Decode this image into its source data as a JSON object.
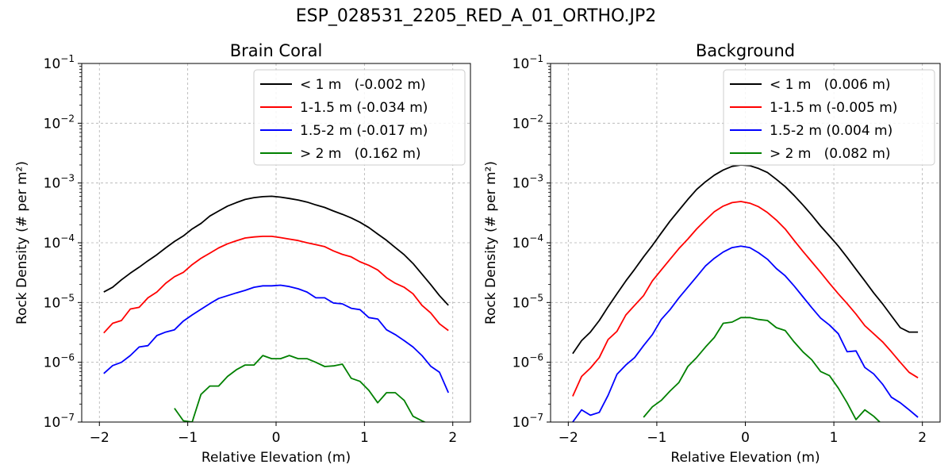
{
  "figure": {
    "suptitle": "ESP_028531_2205_RED_A_01_ORTHO.JP2"
  },
  "chart_data": [
    {
      "type": "line",
      "title": "Brain Coral",
      "xlabel": "Relative Elevation (m)",
      "ylabel": "Rock Density (# per m²)",
      "xlim": [
        -2.2,
        2.2
      ],
      "ylim": [
        1e-07,
        0.1
      ],
      "yscale": "log",
      "grid": true,
      "legend_position": "upper right",
      "xticks": [
        -2,
        -1,
        0,
        1,
        2
      ],
      "xtick_labels": [
        "−2",
        "−1",
        "0",
        "1",
        "2"
      ],
      "yticks": [
        1e-07,
        1e-06,
        1e-05,
        0.0001,
        0.001,
        0.01,
        0.1
      ],
      "ytick_exponents": [
        "−7",
        "−6",
        "−5",
        "−4",
        "−3",
        "−2",
        "−1"
      ],
      "x": [
        -1.95,
        -1.85,
        -1.75,
        -1.65,
        -1.55,
        -1.45,
        -1.35,
        -1.25,
        -1.15,
        -1.05,
        -0.95,
        -0.85,
        -0.75,
        -0.65,
        -0.55,
        -0.45,
        -0.35,
        -0.25,
        -0.15,
        -0.05,
        0.05,
        0.15,
        0.25,
        0.35,
        0.45,
        0.55,
        0.65,
        0.75,
        0.85,
        0.95,
        1.05,
        1.15,
        1.25,
        1.35,
        1.45,
        1.55,
        1.65,
        1.75,
        1.85,
        1.95
      ],
      "series": [
        {
          "name": "< 1 m   (-0.002 m)",
          "color": "#000000",
          "values": [
            1.5e-05,
            1.8e-05,
            2.4e-05,
            3.1e-05,
            3.9e-05,
            5e-05,
            6.3e-05,
            8.2e-05,
            0.000105,
            0.00013,
            0.00017,
            0.00021,
            0.00028,
            0.00034,
            0.00041,
            0.00047,
            0.00053,
            0.00057,
            0.00059,
            0.0006,
            0.00058,
            0.00055,
            0.00052,
            0.00048,
            0.00043,
            0.00039,
            0.00034,
            0.0003,
            0.00026,
            0.00022,
            0.00018,
            0.00014,
            0.00011,
            8.3e-05,
            6.3e-05,
            4.5e-05,
            3e-05,
            2e-05,
            1.3e-05,
            9e-06
          ]
        },
        {
          "name": "1-1.5 m (-0.034 m)",
          "color": "#ff0000",
          "values": [
            3.1e-06,
            4.5e-06,
            5e-06,
            7.8e-06,
            8.3e-06,
            1.2e-05,
            1.5e-05,
            2.1e-05,
            2.7e-05,
            3.2e-05,
            4.3e-05,
            5.5e-05,
            6.7e-05,
            8.2e-05,
            9.6e-05,
            0.000108,
            0.00012,
            0.000125,
            0.000128,
            0.000128,
            0.000122,
            0.000115,
            0.000109,
            0.0001,
            9.3e-05,
            8.6e-05,
            7.3e-05,
            6.4e-05,
            5.8e-05,
            4.8e-05,
            4.2e-05,
            3.5e-05,
            2.6e-05,
            2.1e-05,
            1.8e-05,
            1.4e-05,
            9e-06,
            6.7e-06,
            4.4e-06,
            3.4e-06
          ]
        },
        {
          "name": "1.5-2 m (-0.017 m)",
          "color": "#0000ff",
          "values": [
            6.5e-07,
            8.8e-07,
            1e-06,
            1.3e-06,
            1.8e-06,
            1.9e-06,
            2.8e-06,
            3.2e-06,
            3.5e-06,
            4.9e-06,
            6.2e-06,
            7.7e-06,
            9.6e-06,
            1.17e-05,
            1.3e-05,
            1.45e-05,
            1.6e-05,
            1.8e-05,
            1.9e-05,
            1.9e-05,
            1.95e-05,
            1.85e-05,
            1.7e-05,
            1.5e-05,
            1.2e-05,
            1.2e-05,
            9.8e-06,
            9.5e-06,
            8e-06,
            7.6e-06,
            5.6e-06,
            5.3e-06,
            3.5e-06,
            2.9e-06,
            2.3e-06,
            1.8e-06,
            1.3e-06,
            8.6e-07,
            6.8e-07,
            3.1e-07
          ]
        },
        {
          "name": "> 2 m   (0.162 m)",
          "color": "#008000",
          "values": [
            null,
            null,
            null,
            null,
            null,
            null,
            null,
            null,
            1.7e-07,
            1.05e-07,
            1e-07,
            2.9e-07,
            4e-07,
            4e-07,
            5.8e-07,
            7.5e-07,
            9e-07,
            9e-07,
            1.3e-06,
            1.15e-06,
            1.15e-06,
            1.3e-06,
            1.15e-06,
            1.15e-06,
            1e-06,
            8.5e-07,
            8.7e-07,
            9.3e-07,
            5.4e-07,
            4.8e-07,
            3.4e-07,
            2.1e-07,
            3.1e-07,
            3.1e-07,
            2.3e-07,
            1.25e-07,
            1.05e-07,
            9e-08,
            null,
            null
          ]
        }
      ]
    },
    {
      "type": "line",
      "title": "Background",
      "xlabel": "Relative Elevation (m)",
      "ylabel": "Rock Density (# per m²)",
      "xlim": [
        -2.2,
        2.2
      ],
      "ylim": [
        1e-07,
        0.1
      ],
      "yscale": "log",
      "grid": true,
      "legend_position": "upper right",
      "xticks": [
        -2,
        -1,
        0,
        1,
        2
      ],
      "xtick_labels": [
        "−2",
        "−1",
        "0",
        "1",
        "2"
      ],
      "yticks": [
        1e-07,
        1e-06,
        1e-05,
        0.0001,
        0.001,
        0.01,
        0.1
      ],
      "ytick_exponents": [
        "−7",
        "−6",
        "−5",
        "−4",
        "−3",
        "−2",
        "−1"
      ],
      "x": [
        -1.95,
        -1.85,
        -1.75,
        -1.65,
        -1.55,
        -1.45,
        -1.35,
        -1.25,
        -1.15,
        -1.05,
        -0.95,
        -0.85,
        -0.75,
        -0.65,
        -0.55,
        -0.45,
        -0.35,
        -0.25,
        -0.15,
        -0.05,
        0.05,
        0.15,
        0.25,
        0.35,
        0.45,
        0.55,
        0.65,
        0.75,
        0.85,
        0.95,
        1.05,
        1.15,
        1.25,
        1.35,
        1.45,
        1.55,
        1.65,
        1.75,
        1.85,
        1.95
      ],
      "series": [
        {
          "name": "< 1 m   (0.006 m)",
          "color": "#000000",
          "values": [
            1.4e-06,
            2.3e-06,
            3.2e-06,
            5e-06,
            8.5e-06,
            1.4e-05,
            2.3e-05,
            3.6e-05,
            5.8e-05,
            9e-05,
            0.000145,
            0.00023,
            0.00035,
            0.00053,
            0.00078,
            0.00105,
            0.00135,
            0.00165,
            0.0019,
            0.002,
            0.00195,
            0.00175,
            0.0015,
            0.00115,
            0.00087,
            0.00062,
            0.00043,
            0.00029,
            0.00019,
            0.00013,
            8.8e-05,
            5.7e-05,
            3.6e-05,
            2.3e-05,
            1.45e-05,
            9.5e-06,
            6e-06,
            3.8e-06,
            3.2e-06,
            3.2e-06
          ]
        },
        {
          "name": "1-1.5 m (-0.005 m)",
          "color": "#ff0000",
          "values": [
            2.7e-07,
            5.8e-07,
            8e-07,
            1.2e-06,
            2.4e-06,
            3.3e-06,
            6.2e-06,
            9e-06,
            1.3e-05,
            2.3e-05,
            3.5e-05,
            5.3e-05,
            8e-05,
            0.000115,
            0.00017,
            0.00024,
            0.00033,
            0.00041,
            0.00047,
            0.00049,
            0.00046,
            0.0004,
            0.00032,
            0.00024,
            0.00017,
            0.00011,
            7.2e-05,
            4.8e-05,
            3.2e-05,
            2.1e-05,
            1.4e-05,
            9.6e-06,
            6.4e-06,
            4.1e-06,
            3e-06,
            2.2e-06,
            1.5e-06,
            1e-06,
            6.8e-07,
            5.5e-07
          ]
        },
        {
          "name": "1.5-2 m (0.004 m)",
          "color": "#0000ff",
          "values": [
            1e-07,
            1.6e-07,
            1.3e-07,
            1.45e-07,
            2.8e-07,
            6.3e-07,
            9e-07,
            1.2e-06,
            1.9e-06,
            2.9e-06,
            5.2e-06,
            7.6e-06,
            1.2e-05,
            1.8e-05,
            2.7e-05,
            4.1e-05,
            5.5e-05,
            7e-05,
            8.3e-05,
            8.8e-05,
            8.3e-05,
            6.8e-05,
            5.3e-05,
            3.7e-05,
            2.8e-05,
            1.9e-05,
            1.25e-05,
            8.2e-06,
            5.5e-06,
            4.2e-06,
            3e-06,
            1.5e-06,
            1.55e-06,
            8.2e-07,
            6.4e-07,
            4.3e-07,
            2.6e-07,
            2.1e-07,
            1.6e-07,
            1.2e-07
          ]
        },
        {
          "name": "> 2 m   (0.082 m)",
          "color": "#008000",
          "values": [
            null,
            null,
            null,
            null,
            null,
            null,
            null,
            null,
            1.2e-07,
            1.8e-07,
            2.3e-07,
            3.3e-07,
            4.6e-07,
            8.5e-07,
            1.2e-06,
            1.8e-06,
            2.6e-06,
            4.5e-06,
            4.7e-06,
            5.6e-06,
            5.6e-06,
            5.2e-06,
            5e-06,
            3.8e-06,
            3.4e-06,
            2.2e-06,
            1.5e-06,
            1.1e-06,
            7e-07,
            6e-07,
            3.7e-07,
            2.1e-07,
            1.1e-07,
            1.6e-07,
            1.25e-07,
            9e-08,
            null,
            null,
            null,
            null
          ]
        }
      ]
    }
  ]
}
